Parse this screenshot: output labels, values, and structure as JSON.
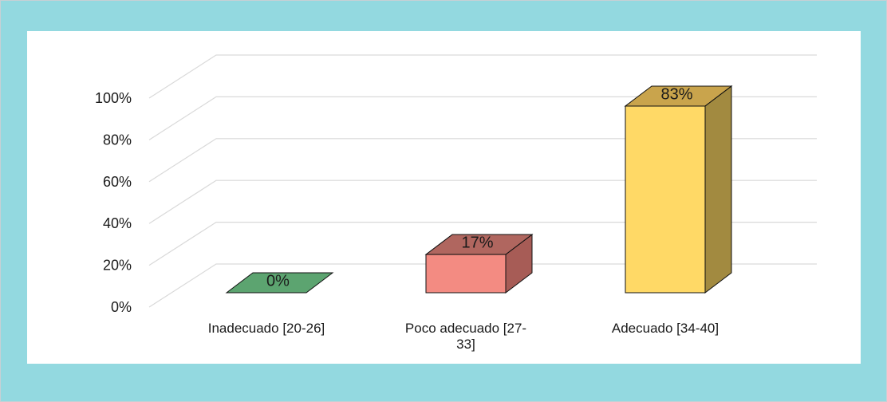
{
  "chart_data": {
    "type": "bar",
    "style": "3d-column",
    "categories": [
      "Inadecuado  [20-26]",
      "Poco adecuado  [27-33]",
      "Adecuado  [34-40]"
    ],
    "category_label_lines": [
      [
        "Inadecuado  [20-26]"
      ],
      [
        "Poco adecuado  [27-",
        "33]"
      ],
      [
        "Adecuado  [34-40]"
      ]
    ],
    "values": [
      0,
      17,
      83
    ],
    "data_labels": [
      "0%",
      "17%",
      "83%"
    ],
    "y_ticks": [
      "0%",
      "20%",
      "40%",
      "60%",
      "80%",
      "100%"
    ],
    "ylim": [
      0,
      100
    ],
    "grid": true,
    "legend": "none",
    "colors": {
      "front": [
        "#5ca470",
        "#f38b82",
        "#ffd966"
      ],
      "top": [
        "#5ca470",
        "#b0665f",
        "#c9a44c"
      ],
      "side": [
        "#4a8a5c",
        "#a75c56",
        "#a28a40"
      ],
      "frame_background": "#93d9e0",
      "gridline": "#d9d9d9"
    }
  }
}
